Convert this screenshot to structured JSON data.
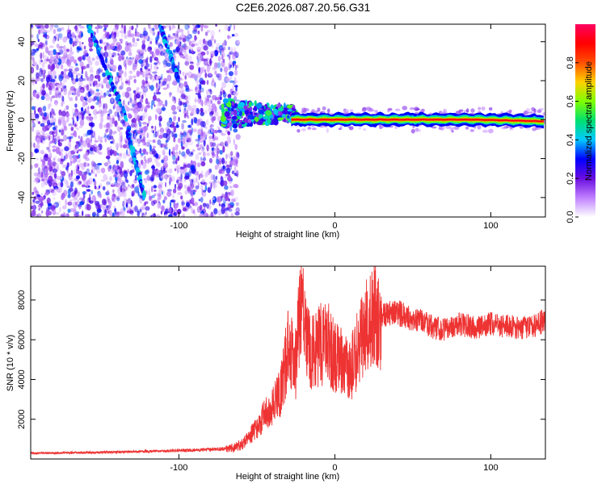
{
  "chart_data": [
    {
      "type": "heatmap",
      "title": "C2E6.2026.087.20.56.G31",
      "xlabel": "Height of straight line (km)",
      "ylabel": "Frequency (Hz)",
      "xlim": [
        -195,
        135
      ],
      "ylim": [
        -50,
        49
      ],
      "xticks": [
        -100,
        0,
        100
      ],
      "xtick_labels": [
        "-100",
        "0",
        "100"
      ],
      "yticks": [
        -40,
        -20,
        0,
        20,
        40
      ],
      "ytick_labels": [
        "-40",
        "-20",
        "0",
        "20",
        "40"
      ],
      "noise_region_x": [
        -195,
        -64
      ],
      "transition_region_x": [
        -72,
        -25
      ],
      "carrier_freq_hz": 0,
      "streaks": [
        {
          "x_start": -158,
          "y_start": 48,
          "x_end": -133,
          "y_end": 0
        },
        {
          "x_start": -133,
          "y_start": -5,
          "x_end": -122,
          "y_end": -40
        },
        {
          "x_start": -112,
          "y_start": 48,
          "x_end": -100,
          "y_end": 20
        }
      ],
      "colorbar": {
        "label": "Normalized spectral amplitude",
        "range": [
          0,
          1
        ],
        "ticks": [
          0.0,
          0.2,
          0.4,
          0.6,
          0.8
        ],
        "tick_labels": [
          "0.0",
          "0.2",
          "0.4",
          "0.6",
          "0.8"
        ],
        "stops": [
          "#ffffff",
          "#c080ff",
          "#6a0ddf",
          "#0000ff",
          "#00c8ff",
          "#00e070",
          "#80ff00",
          "#ffd000",
          "#ff5000",
          "#ff0000",
          "#ff0060"
        ]
      }
    },
    {
      "type": "line",
      "xlabel": "Height of straight line (km)",
      "ylabel": "SNR (10 * v/v)",
      "xlim": [
        -195,
        135
      ],
      "ylim": [
        0,
        9700
      ],
      "xticks": [
        -100,
        0,
        100
      ],
      "xtick_labels": [
        "-100",
        "0",
        "100"
      ],
      "yticks": [
        2000,
        4000,
        6000,
        8000
      ],
      "ytick_labels": [
        "2000",
        "4000",
        "6000",
        "8000"
      ],
      "series": [
        {
          "name": "SNR",
          "color": "#ee3333",
          "x": [
            -195,
            -180,
            -160,
            -140,
            -120,
            -100,
            -80,
            -68,
            -60,
            -55,
            -50,
            -45,
            -40,
            -35,
            -30,
            -25,
            -22,
            -20,
            -15,
            -10,
            -5,
            0,
            5,
            10,
            15,
            20,
            25,
            30,
            35,
            40,
            45,
            50,
            55,
            60,
            70,
            80,
            90,
            100,
            110,
            120,
            130,
            135
          ],
          "values": [
            300,
            300,
            320,
            350,
            380,
            420,
            480,
            520,
            700,
            1100,
            1600,
            2200,
            2600,
            3400,
            5500,
            4800,
            8500,
            6800,
            5200,
            5800,
            6000,
            5000,
            4800,
            4400,
            5800,
            6600,
            7200,
            7200,
            7300,
            7400,
            7200,
            7000,
            7100,
            6700,
            6500,
            6800,
            6600,
            6800,
            6700,
            6600,
            6800,
            7000
          ]
        }
      ]
    }
  ]
}
